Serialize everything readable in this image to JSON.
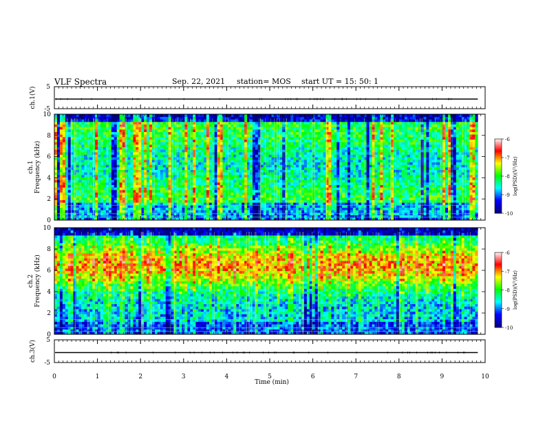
{
  "header": {
    "title": "VLF Spectra",
    "date": "Sep. 22, 2021",
    "station": "station= MOS",
    "start": "start  UT =   15: 50: 1"
  },
  "chart_data": {
    "type": "heatmap",
    "x": {
      "label": "Time (min)",
      "range": [
        0,
        10
      ],
      "ticks": [
        "0",
        "1",
        "2",
        "3",
        "4",
        "5",
        "6",
        "7",
        "8",
        "9",
        "10"
      ],
      "data_end": 9.83
    },
    "panels": [
      {
        "name": "ch.1(V)",
        "kind": "waveform",
        "ylabel": "ch.1(V)",
        "ylim": [
          -5,
          5
        ],
        "ticks": [
          "5",
          "-5"
        ],
        "baseline": 0
      },
      {
        "name": "ch.1 spectrogram",
        "kind": "spectrogram",
        "ylabel_top": "ch.1",
        "ylabel_bottom": "Frequency (kHz)",
        "ylim": [
          0,
          10
        ],
        "ticks": [
          "0",
          "2",
          "4",
          "6",
          "8",
          "10"
        ],
        "colorbar": {
          "label": "log(PSD)(V²/Hz)",
          "range": [
            -10,
            -6
          ],
          "ticks": [
            "-6",
            "-7",
            "-8",
            "-9",
            "-10"
          ]
        }
      },
      {
        "name": "ch.2 spectrogram",
        "kind": "spectrogram",
        "ylabel_top": "ch.2",
        "ylabel_bottom": "Frequency (kHz)",
        "ylim": [
          0,
          10
        ],
        "ticks": [
          "0",
          "2",
          "4",
          "6",
          "8",
          "10"
        ],
        "colorbar": {
          "label": "log(PSD)(V²/Hz)",
          "range": [
            -10,
            -6
          ],
          "ticks": [
            "-6",
            "-7",
            "-8",
            "-9",
            "-10"
          ]
        }
      },
      {
        "name": "ch.3(V)",
        "kind": "waveform",
        "ylabel": "ch.3(V)",
        "ylim": [
          -5,
          5
        ],
        "ticks": [
          "5",
          "-5"
        ],
        "baseline": 0
      }
    ],
    "colormap": [
      "#000080",
      "#0000ff",
      "#00ffff",
      "#00ff00",
      "#ffff00",
      "#ff0000",
      "#ffffff"
    ]
  }
}
